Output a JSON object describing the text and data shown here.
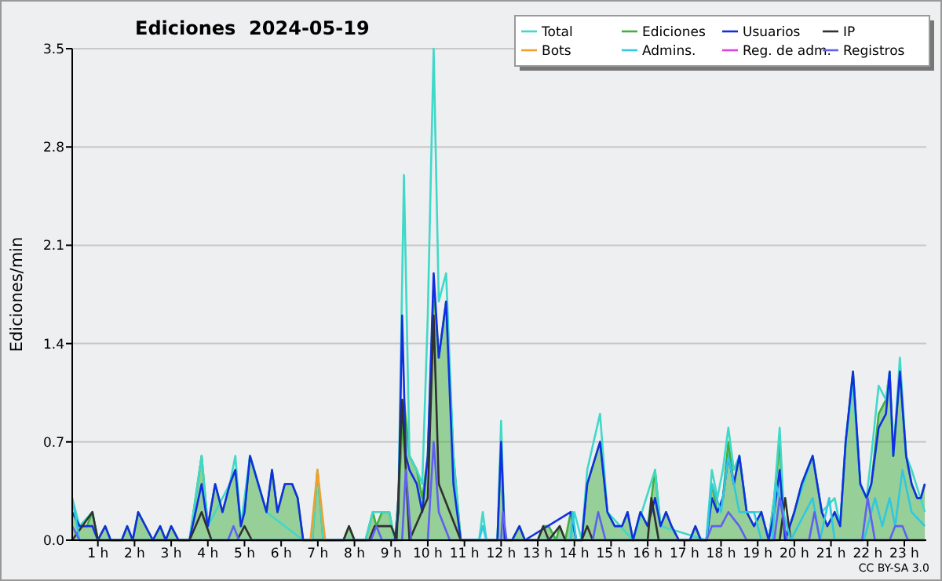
{
  "chart_data": {
    "type": "line",
    "title": "Ediciones  2024-05-19",
    "ylabel": "Ediciones/min",
    "annotations": [
      "CC BY-SA 3.0"
    ],
    "legend": "top right",
    "grid": "y",
    "xlim": [
      0.3,
      23.6
    ],
    "xticks": [
      {
        "value": 1,
        "label": "1 h"
      },
      {
        "value": 2,
        "label": "2 h"
      },
      {
        "value": 3,
        "label": "3 h"
      },
      {
        "value": 4,
        "label": "4 h"
      },
      {
        "value": 5,
        "label": "5 h"
      },
      {
        "value": 6,
        "label": "6 h"
      },
      {
        "value": 7,
        "label": "7 h"
      },
      {
        "value": 8,
        "label": "8 h"
      },
      {
        "value": 9,
        "label": "9 h"
      },
      {
        "value": 10,
        "label": "10 h"
      },
      {
        "value": 11,
        "label": "11 h"
      },
      {
        "value": 12,
        "label": "12 h"
      },
      {
        "value": 13,
        "label": "13 h"
      },
      {
        "value": 14,
        "label": "14 h"
      },
      {
        "value": 15,
        "label": "15 h"
      },
      {
        "value": 16,
        "label": "16 h"
      },
      {
        "value": 17,
        "label": "17 h"
      },
      {
        "value": 18,
        "label": "18 h"
      },
      {
        "value": 19,
        "label": "19 h"
      },
      {
        "value": 20,
        "label": "20 h"
      },
      {
        "value": 21,
        "label": "21 h"
      },
      {
        "value": 22,
        "label": "22 h"
      },
      {
        "value": 23,
        "label": "23 h"
      }
    ],
    "ylim": [
      0,
      3.5
    ],
    "yticks": [
      {
        "value": 0,
        "label": "0.0"
      },
      0.7,
      1.4,
      2.1,
      2.8,
      3.5
    ],
    "series": [
      {
        "name": "Ediciones",
        "type": "area",
        "color": "#40b040",
        "x": [
          0.3,
          0.5,
          0.7,
          0.85,
          1.0,
          1.2,
          1.35,
          1.65,
          1.8,
          1.95,
          2.1,
          2.5,
          2.7,
          2.85,
          3.0,
          3.2,
          3.5,
          3.83,
          4.0,
          4.2,
          4.4,
          4.6,
          4.75,
          4.9,
          5.0,
          5.15,
          5.6,
          5.75,
          5.9,
          6.1,
          6.3,
          6.45,
          6.6,
          6.85,
          6.99,
          7.15,
          7.7,
          7.85,
          8.0,
          8.3,
          8.5,
          8.6,
          8.75,
          8.95,
          9.1,
          9.2,
          9.35,
          9.5,
          9.7,
          9.85,
          10.0,
          10.16,
          10.3,
          10.5,
          10.7,
          10.9,
          11.9,
          12.0,
          12.1,
          12.3,
          12.5,
          12.65,
          13.0,
          13.15,
          13.3,
          13.5,
          13.6,
          13.75,
          13.9,
          14.05,
          14.2,
          14.35,
          14.7,
          14.9,
          15.1,
          15.3,
          15.45,
          15.6,
          15.8,
          16.0,
          16.2,
          16.35,
          16.5,
          16.65,
          16.85,
          17.15,
          17.3,
          17.45,
          17.6,
          17.75,
          17.9,
          18.05,
          18.2,
          18.35,
          18.5,
          18.7,
          18.9,
          19.1,
          19.3,
          19.45,
          19.6,
          19.75,
          20.0,
          20.2,
          20.5,
          20.75,
          20.9,
          21.1,
          21.25,
          21.4,
          21.6,
          21.8,
          21.97,
          22.1,
          22.3,
          22.5,
          22.6,
          22.7,
          22.88,
          23.05,
          23.2,
          23.35,
          23.45,
          23.56
        ],
        "values": [
          0.2,
          0.1,
          0.1,
          0.2,
          0,
          0.1,
          0,
          0,
          0.1,
          0,
          0.2,
          0,
          0.1,
          0,
          0.1,
          0,
          0,
          0.6,
          0.1,
          0.4,
          0.2,
          0.4,
          0.5,
          0.1,
          0.2,
          0.6,
          0.2,
          0.5,
          0.2,
          0.4,
          0.4,
          0.3,
          0,
          0,
          0.5,
          0,
          0,
          0.1,
          0,
          0,
          0.2,
          0.1,
          0.2,
          0.2,
          0,
          0.3,
          1.0,
          0.6,
          0.5,
          0.3,
          0.6,
          1.8,
          1.3,
          1.7,
          0.6,
          0,
          0,
          0.7,
          0,
          0,
          0.1,
          0,
          0,
          0.1,
          0.1,
          0,
          0.1,
          0,
          0.2,
          0,
          0,
          0.4,
          0.7,
          0.2,
          0.1,
          0.1,
          0.2,
          0,
          0.2,
          0.1,
          0.5,
          0.1,
          0.2,
          0.1,
          0,
          0,
          0.1,
          0,
          0,
          0.4,
          0.2,
          0.3,
          0.7,
          0.4,
          0.6,
          0.2,
          0.1,
          0.2,
          0,
          0.3,
          0.7,
          0,
          0.2,
          0.4,
          0.6,
          0.2,
          0.1,
          0.2,
          0.1,
          0.7,
          1.2,
          0.4,
          0.3,
          0.4,
          0.9,
          1.0,
          1.2,
          0.6,
          1.2,
          0.6,
          0.4,
          0.3,
          0.3,
          0.4
        ]
      },
      {
        "name": "Total",
        "color": "#40d8c8",
        "x": [
          0.3,
          0.5,
          0.85,
          1.0,
          3.5,
          3.83,
          4.0,
          4.6,
          4.75,
          4.9,
          5.15,
          5.6,
          6.6,
          6.85,
          6.99,
          7.15,
          8.3,
          8.5,
          8.95,
          9.1,
          9.2,
          9.35,
          9.5,
          9.7,
          9.85,
          10.0,
          10.16,
          10.3,
          10.5,
          10.7,
          10.9,
          11.4,
          11.5,
          11.6,
          11.9,
          12.0,
          12.1,
          13.9,
          14.0,
          14.2,
          14.35,
          14.7,
          14.9,
          15.6,
          16.2,
          16.35,
          17.6,
          17.75,
          17.9,
          18.05,
          18.2,
          18.35,
          18.5,
          18.7,
          19.1,
          19.3,
          19.45,
          19.6,
          19.75,
          20.0,
          20.5,
          20.75,
          21.1,
          21.25,
          21.4,
          21.6,
          21.8,
          21.97,
          22.1,
          22.3,
          22.5,
          22.6,
          22.7,
          22.88,
          23.05,
          23.2,
          23.56
        ],
        "values": [
          0.3,
          0.1,
          0.2,
          0,
          0,
          0.6,
          0.1,
          0.4,
          0.6,
          0.1,
          0.6,
          0.2,
          0,
          0,
          0.5,
          0,
          0,
          0.2,
          0.2,
          0,
          0.3,
          2.6,
          0.6,
          0.5,
          0.4,
          1.6,
          3.5,
          1.7,
          1.9,
          0.6,
          0,
          0,
          0.2,
          0,
          0,
          0.85,
          0,
          0,
          0.2,
          0,
          0.5,
          0.9,
          0.2,
          0,
          0.5,
          0.1,
          0,
          0.5,
          0.3,
          0.5,
          0.8,
          0.5,
          0.6,
          0.2,
          0.2,
          0,
          0.3,
          0.8,
          0,
          0.2,
          0.6,
          0.2,
          0.3,
          0.1,
          0.7,
          1.1,
          0.4,
          0.3,
          0.6,
          1.1,
          1.0,
          1.2,
          0.6,
          1.3,
          0.6,
          0.5,
          0.2
        ]
      },
      {
        "name": "Usuarios",
        "color": "#1030e0",
        "x": [
          0.3,
          0.5,
          0.7,
          0.85,
          1.0,
          1.2,
          1.35,
          1.65,
          1.8,
          1.95,
          2.1,
          2.5,
          2.7,
          2.85,
          3.0,
          3.2,
          3.5,
          3.83,
          4.0,
          4.2,
          4.4,
          4.6,
          4.75,
          4.9,
          5.0,
          5.15,
          5.6,
          5.75,
          5.9,
          6.1,
          6.3,
          6.45,
          6.6,
          9.1,
          9.2,
          9.3,
          9.4,
          9.5,
          9.7,
          9.85,
          10.0,
          10.16,
          10.3,
          10.5,
          10.7,
          10.9,
          11.9,
          12.0,
          12.1,
          12.3,
          12.5,
          12.65,
          13.9,
          14.05,
          14.2,
          14.35,
          14.7,
          14.9,
          15.1,
          15.3,
          15.45,
          15.6,
          15.8,
          16.0,
          16.2,
          16.35,
          16.5,
          16.65,
          16.85,
          17.15,
          17.3,
          17.45,
          17.6,
          17.75,
          17.9,
          18.05,
          18.2,
          18.35,
          18.5,
          18.7,
          18.9,
          19.1,
          19.3,
          19.45,
          19.6,
          19.75,
          20.0,
          20.2,
          20.5,
          20.75,
          20.9,
          21.1,
          21.25,
          21.4,
          21.6,
          21.8,
          21.97,
          22.1,
          22.3,
          22.5,
          22.6,
          22.7,
          22.88,
          23.05,
          23.2,
          23.35,
          23.45,
          23.56
        ],
        "values": [
          0.2,
          0.1,
          0.1,
          0.1,
          0,
          0.1,
          0,
          0,
          0.1,
          0,
          0.2,
          0,
          0.1,
          0,
          0.1,
          0,
          0,
          0.4,
          0.1,
          0.4,
          0.2,
          0.4,
          0.5,
          0.1,
          0.2,
          0.6,
          0.2,
          0.5,
          0.2,
          0.4,
          0.4,
          0.3,
          0,
          0,
          0.2,
          1.6,
          0.6,
          0.5,
          0.4,
          0.2,
          0.6,
          1.9,
          1.3,
          1.7,
          0.4,
          0,
          0,
          0.7,
          0,
          0,
          0.1,
          0,
          0.2,
          0,
          0,
          0.4,
          0.7,
          0.2,
          0.1,
          0.1,
          0.2,
          0,
          0.2,
          0.1,
          0.3,
          0.1,
          0.2,
          0.1,
          0,
          0,
          0.1,
          0,
          0,
          0.3,
          0.2,
          0.3,
          0.6,
          0.4,
          0.6,
          0.2,
          0.1,
          0.2,
          0,
          0.2,
          0.5,
          0,
          0.2,
          0.4,
          0.6,
          0.2,
          0.1,
          0.2,
          0.1,
          0.7,
          1.2,
          0.4,
          0.3,
          0.4,
          0.8,
          0.9,
          1.2,
          0.6,
          1.2,
          0.6,
          0.4,
          0.3,
          0.3,
          0.4
        ]
      },
      {
        "name": "IP",
        "color": "#303030",
        "x": [
          0.3,
          0.85,
          1.0,
          3.5,
          3.83,
          4.1,
          4.8,
          5.0,
          5.2,
          7.7,
          7.85,
          8.0,
          8.4,
          8.55,
          9.0,
          9.15,
          9.3,
          9.5,
          10.0,
          10.16,
          10.3,
          10.6,
          10.9,
          13.0,
          13.15,
          13.3,
          13.6,
          13.75,
          14.2,
          14.35,
          14.5,
          16.0,
          16.1,
          16.3,
          19.6,
          19.75,
          19.9,
          23.56
        ],
        "values": [
          0,
          0.2,
          0,
          0,
          0.2,
          0,
          0,
          0.1,
          0,
          0,
          0.1,
          0,
          0,
          0.1,
          0.1,
          0,
          1.0,
          0,
          0.3,
          1.6,
          0.4,
          0.2,
          0,
          0,
          0.1,
          0,
          0.1,
          0,
          0,
          0.1,
          0,
          0,
          0.3,
          0,
          0,
          0.3,
          0,
          0
        ]
      },
      {
        "name": "Bots",
        "color": "#f0a030",
        "x": [
          6.8,
          6.99,
          7.2
        ],
        "values": [
          0,
          0.5,
          0
        ]
      },
      {
        "name": "Admins.",
        "color": "#30c8e0",
        "x": [
          0.3,
          0.5,
          11.4,
          11.5,
          11.6,
          13.9,
          13.95,
          14.05,
          17.6,
          17.75,
          18.0,
          18.2,
          18.5,
          18.9,
          19.1,
          19.4,
          19.5,
          19.7,
          19.9,
          20.5,
          20.7,
          20.95,
          21.1,
          21.9,
          22.2,
          22.4,
          22.6,
          22.75,
          22.95,
          23.2,
          23.56
        ],
        "values": [
          0.3,
          0,
          0,
          0.1,
          0,
          0,
          0.2,
          0,
          0,
          0.4,
          0.2,
          0.6,
          0.2,
          0.2,
          0,
          0,
          0.4,
          0.2,
          0,
          0.3,
          0,
          0.3,
          0,
          0,
          0.3,
          0.1,
          0.3,
          0.1,
          0.5,
          0.2,
          0.1
        ]
      },
      {
        "name": "Reg. de adm.",
        "color": "#e040e0"
      },
      {
        "name": "Registros",
        "color": "#6060f0",
        "x": [
          0.3,
          0.5,
          4.55,
          4.7,
          4.85,
          8.45,
          8.6,
          8.75,
          9.3,
          9.4,
          9.55,
          10.0,
          10.16,
          10.3,
          10.6,
          12.0,
          12.05,
          12.15,
          14.5,
          14.65,
          14.85,
          17.6,
          17.75,
          18.0,
          18.2,
          18.5,
          18.7,
          19.45,
          19.6,
          19.8,
          20.4,
          20.55,
          20.7,
          21.85,
          22.0,
          22.2,
          22.6,
          22.75,
          22.95,
          23.1
        ],
        "values": [
          0.1,
          0,
          0,
          0.1,
          0,
          0,
          0.1,
          0,
          0,
          0.5,
          0,
          0,
          0.7,
          0.2,
          0,
          0,
          0.2,
          0,
          0,
          0.2,
          0,
          0,
          0.1,
          0.1,
          0.2,
          0.1,
          0,
          0,
          0.3,
          0,
          0,
          0.2,
          0,
          0,
          0.3,
          0,
          0,
          0.1,
          0.1,
          0
        ]
      }
    ]
  }
}
